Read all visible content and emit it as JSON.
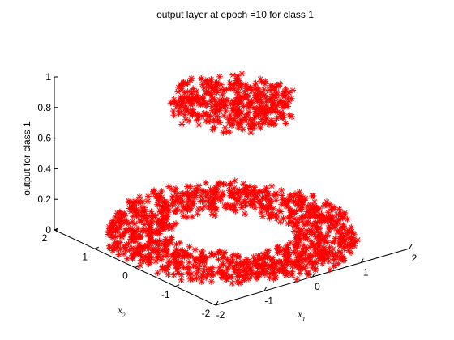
{
  "chart_data": {
    "type": "scatter",
    "title": "output layer at epoch =10 for class 1",
    "xlabel": "x1",
    "xlabel_base": "x",
    "xlabel_sub": "1",
    "ylabel": "x2",
    "ylabel_base": "x",
    "ylabel_sub": "2",
    "zlabel": "output for class 1",
    "xlim": [
      -2,
      2
    ],
    "ylim": [
      -2,
      2
    ],
    "zlim": [
      0,
      1
    ],
    "xticks": [
      "-2",
      "-1",
      "0",
      "1",
      "2"
    ],
    "yticks": [
      "-2",
      "-1",
      "0",
      "1",
      "2"
    ],
    "zticks": [
      "0",
      "0.2",
      "0.4",
      "0.6",
      "0.8",
      "1"
    ],
    "grid": false,
    "marker": "*",
    "marker_color": "#ff0000",
    "series": [
      {
        "description_key": "inner_disk",
        "shape": "disk",
        "radius_max": 1.0,
        "output_range": [
          0.82,
          0.96
        ],
        "count": 400
      },
      {
        "description_key": "outer_ring",
        "shape": "annulus",
        "radius_min": 1.0,
        "radius_max": 2.0,
        "output_range": [
          0.0,
          0.08
        ],
        "count": 1200
      }
    ]
  }
}
